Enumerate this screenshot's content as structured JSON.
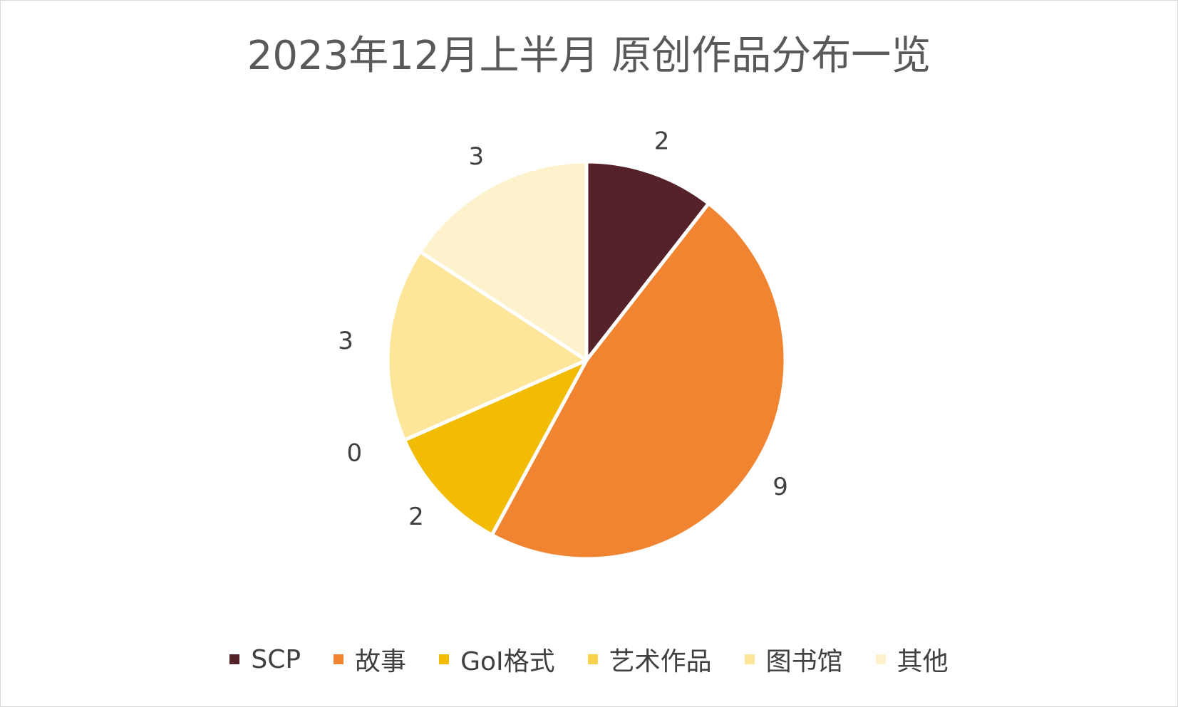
{
  "chart_data": {
    "type": "pie",
    "title": "2023年12月上半月 原创作品分布一览",
    "categories": [
      "SCP",
      "故事",
      "GoI格式",
      "艺术作品",
      "图书馆",
      "其他"
    ],
    "values": [
      2,
      9,
      2,
      0,
      3,
      3
    ],
    "data_labels": [
      "2",
      "9",
      "2",
      "0",
      "3",
      "3"
    ],
    "colors": [
      "#55222a",
      "#f08431",
      "#f2bc05",
      "#f7d24a",
      "#fde699",
      "#fef2cc"
    ],
    "legend": "bottom"
  }
}
